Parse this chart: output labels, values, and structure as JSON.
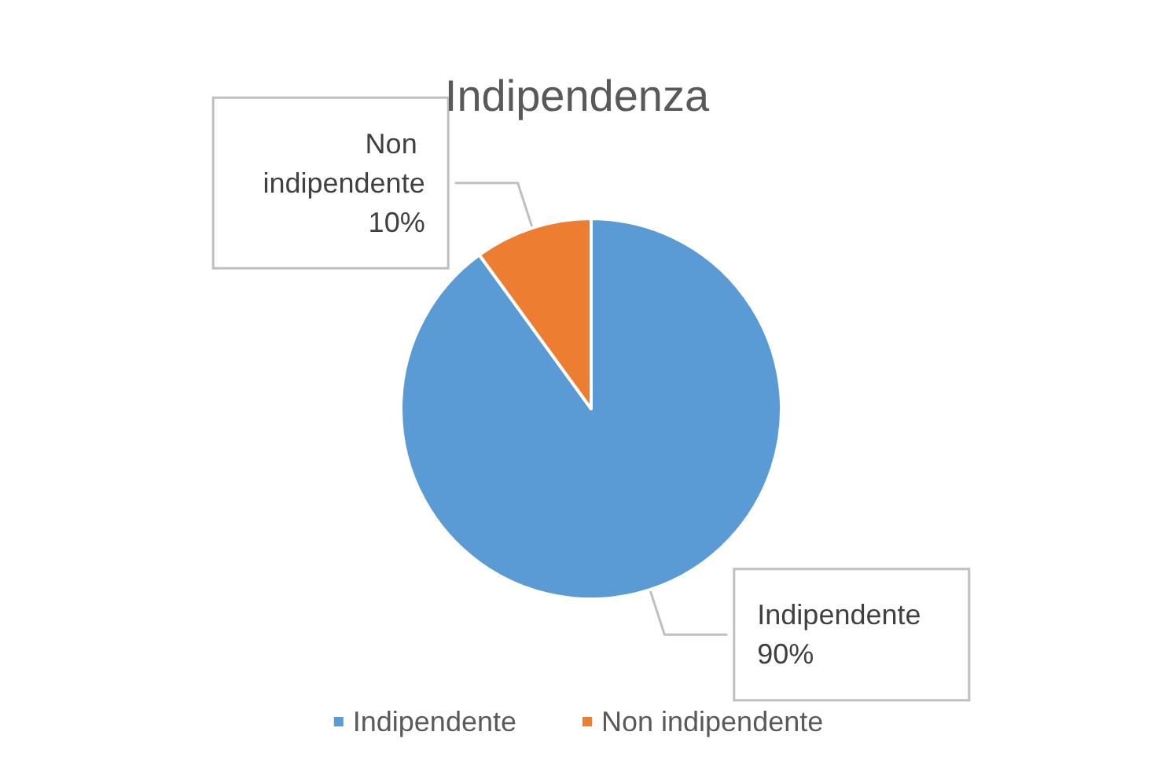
{
  "chart_data": {
    "type": "pie",
    "title": "Indipendenza",
    "categories": [
      "Indipendente",
      "Non indipendente"
    ],
    "values": [
      90,
      10
    ],
    "colors": [
      "#5b9bd5",
      "#ed7d31"
    ],
    "value_labels": [
      "90%",
      "10%"
    ],
    "legend": "bottom"
  }
}
